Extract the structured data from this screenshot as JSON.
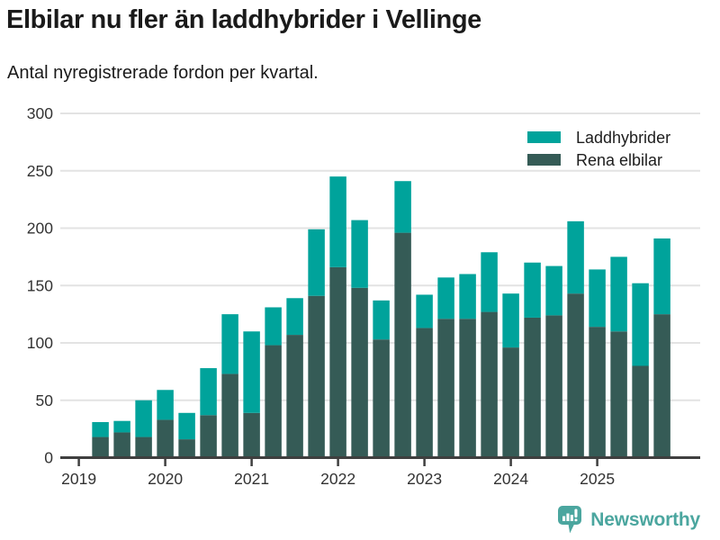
{
  "header": {
    "title": "Elbilar nu fler än laddhybrider i Vellinge",
    "subtitle": "Antal nyregistrerade fordon per kvartal."
  },
  "footer": {
    "brand": "Newsworthy",
    "logo_icon": "bar-chart-speech-bubble-icon",
    "brand_color": "#4ba69f"
  },
  "chart_data": {
    "type": "bar",
    "stacked": true,
    "title": "Elbilar nu fler än laddhybrider i Vellinge",
    "subtitle": "Antal nyregistrerade fordon per kvartal.",
    "x": [
      "2019-Q2",
      "2019-Q3",
      "2019-Q4",
      "2020-Q1",
      "2020-Q2",
      "2020-Q3",
      "2020-Q4",
      "2021-Q1",
      "2021-Q2",
      "2021-Q3",
      "2021-Q4",
      "2022-Q1",
      "2022-Q2",
      "2022-Q3",
      "2022-Q4",
      "2023-Q1",
      "2023-Q2",
      "2023-Q3",
      "2023-Q4",
      "2024-Q1",
      "2024-Q2",
      "2024-Q3",
      "2024-Q4",
      "2025-Q1",
      "2025-Q2",
      "2025-Q3",
      "2025-Q4"
    ],
    "series": [
      {
        "name": "Laddhybrider",
        "color": "#00a39b",
        "values": [
          13,
          10,
          32,
          26,
          23,
          41,
          52,
          71,
          33,
          32,
          58,
          79,
          59,
          34,
          45,
          29,
          36,
          39,
          52,
          47,
          48,
          43,
          63,
          50,
          65,
          72,
          66
        ]
      },
      {
        "name": "Rena elbilar",
        "color": "#355b56",
        "values": [
          18,
          22,
          18,
          33,
          16,
          37,
          73,
          39,
          98,
          107,
          141,
          166,
          148,
          103,
          196,
          113,
          121,
          121,
          127,
          96,
          122,
          124,
          143,
          114,
          110,
          80,
          125
        ]
      }
    ],
    "stack_bottom_series": "Rena elbilar",
    "totals": [
      31,
      32,
      50,
      59,
      39,
      78,
      125,
      110,
      131,
      139,
      199,
      245,
      207,
      137,
      241,
      142,
      157,
      160,
      179,
      143,
      170,
      167,
      206,
      164,
      175,
      152,
      191
    ],
    "ylim": [
      0,
      300
    ],
    "yticks": [
      0,
      50,
      100,
      150,
      200,
      250,
      300
    ],
    "xtick_labels": [
      "2019",
      "2020",
      "2021",
      "2022",
      "2023",
      "2024",
      "2025"
    ],
    "legend": {
      "position": "top-right",
      "entries": [
        "Laddhybrider",
        "Rena elbilar"
      ]
    },
    "grid": "horizontal",
    "axis_color": "#3f3f3f",
    "grid_color": "#e3e3e3",
    "tick_label_color": "#333333"
  }
}
